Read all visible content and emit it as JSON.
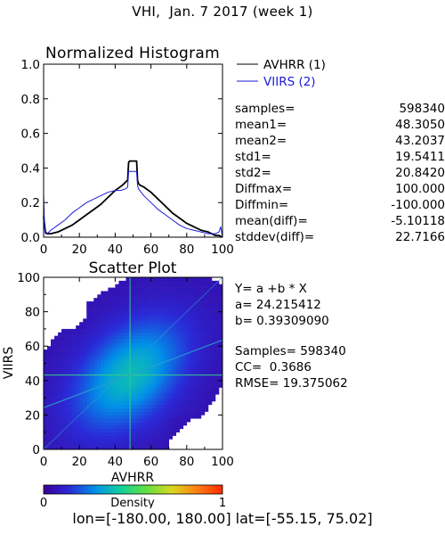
{
  "page": {
    "title": "VHI,  Jan. 7 2017 (week 1)",
    "region": "lon=[-180.00, 180.00] lat=[-55.15, 75.02]"
  },
  "colors": {
    "avhrr": "#000000",
    "viirs": "#1a1ad8",
    "regression_line": "#2aa0d0",
    "mean_cross": "#33cc88",
    "colorbar": [
      "#3a0096",
      "#2a2ad8",
      "#0090e8",
      "#10d0a0",
      "#60e040",
      "#d8d820",
      "#ff8010",
      "#ff2a00"
    ]
  },
  "stats": {
    "rows": [
      {
        "key": "samples=",
        "value": "598340"
      },
      {
        "key": "mean1=",
        "value": "48.3050"
      },
      {
        "key": "mean2=",
        "value": "43.2037"
      },
      {
        "key": "std1=",
        "value": "19.5411"
      },
      {
        "key": "std2=",
        "value": "20.8420"
      },
      {
        "key": "Diffmax=",
        "value": "100.000"
      },
      {
        "key": "Diffmin=",
        "value": "-100.000"
      },
      {
        "key": "mean(diff)=",
        "value": "-5.10118"
      },
      {
        "key": "stddev(diff)=",
        "value": "22.7166"
      }
    ]
  },
  "fit": {
    "lines": [
      "Y= a +b * X",
      "a= 24.215412",
      "b= 0.39309090",
      "",
      "Samples= 598340",
      "CC=  0.3686",
      "RMSE= 19.375062"
    ]
  },
  "chart_data": [
    {
      "type": "line",
      "title": "Normalized Histogram",
      "xlabel": "",
      "ylabel": "",
      "xlim": [
        0,
        100
      ],
      "ylim": [
        0,
        1.0
      ],
      "x_ticks": [
        "0",
        "20",
        "40",
        "60",
        "80",
        "100"
      ],
      "y_ticks": [
        "0.0",
        "0.2",
        "0.4",
        "0.6",
        "0.8",
        "1.0"
      ],
      "legend": {
        "position": "top-right",
        "entries": [
          "AVHRR (1)",
          "VIIRS (2)"
        ]
      },
      "series": [
        {
          "name": "AVHRR (1)",
          "x": [
            0,
            1,
            2,
            4,
            8,
            12,
            16,
            20,
            24,
            28,
            32,
            36,
            40,
            44,
            46,
            47,
            47.5,
            48,
            50,
            52,
            52.5,
            53,
            54,
            56,
            60,
            64,
            68,
            72,
            76,
            80,
            84,
            88,
            92,
            96,
            98,
            100
          ],
          "y": [
            0.12,
            0.03,
            0.02,
            0.02,
            0.03,
            0.05,
            0.07,
            0.1,
            0.13,
            0.16,
            0.19,
            0.23,
            0.27,
            0.3,
            0.32,
            0.33,
            0.43,
            0.44,
            0.44,
            0.44,
            0.33,
            0.31,
            0.3,
            0.29,
            0.26,
            0.22,
            0.18,
            0.14,
            0.11,
            0.08,
            0.06,
            0.04,
            0.03,
            0.01,
            0.01,
            0.0
          ]
        },
        {
          "name": "VIIRS (2)",
          "x": [
            0,
            0.5,
            1,
            2,
            4,
            8,
            12,
            16,
            20,
            24,
            28,
            32,
            36,
            40,
            43,
            46,
            47,
            47.5,
            48,
            50,
            52,
            52.5,
            53,
            56,
            60,
            64,
            68,
            72,
            76,
            80,
            84,
            88,
            92,
            96,
            98,
            99,
            100
          ],
          "y": [
            0.25,
            0.06,
            0.02,
            0.02,
            0.04,
            0.07,
            0.1,
            0.14,
            0.17,
            0.2,
            0.22,
            0.24,
            0.26,
            0.27,
            0.27,
            0.28,
            0.29,
            0.38,
            0.38,
            0.38,
            0.38,
            0.3,
            0.28,
            0.24,
            0.2,
            0.16,
            0.13,
            0.1,
            0.07,
            0.05,
            0.04,
            0.03,
            0.02,
            0.02,
            0.03,
            0.06,
            0.0
          ]
        }
      ]
    },
    {
      "type": "heatmap",
      "title": "Scatter Plot",
      "xlabel": "AVHRR",
      "ylabel": "VIIRS",
      "xlim": [
        0,
        100
      ],
      "ylim": [
        0,
        100
      ],
      "x_ticks": [
        "0",
        "20",
        "40",
        "60",
        "80",
        "100"
      ],
      "y_ticks": [
        "0",
        "20",
        "40",
        "60",
        "80",
        "100"
      ],
      "regression": {
        "intercept": 24.215412,
        "slope": 0.3930909
      },
      "mean_cross": {
        "x": 48.305,
        "y": 43.2037
      },
      "colorbar": {
        "label": "Density",
        "min_label": "0",
        "max_label": "1"
      }
    }
  ]
}
